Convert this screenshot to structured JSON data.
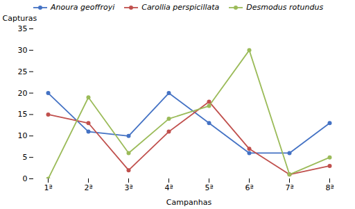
{
  "chart_data": {
    "type": "line",
    "categories": [
      "1ª",
      "2ª",
      "3ª",
      "4ª",
      "5ª",
      "6ª",
      "7ª",
      "8ª"
    ],
    "series": [
      {
        "name": "Anoura geoffroyi",
        "color": "#4472C4",
        "values": [
          20,
          11,
          10,
          20,
          13,
          6,
          6,
          13
        ]
      },
      {
        "name": "Carollia perspicillata",
        "color": "#C0504D",
        "values": [
          15,
          13,
          2,
          11,
          18,
          7,
          1,
          3
        ]
      },
      {
        "name": "Desmodus rotundus",
        "color": "#9BBB59",
        "values": [
          0,
          19,
          6,
          14,
          17,
          30,
          1,
          5
        ]
      }
    ],
    "xlabel": "Campanhas",
    "ylabel": "Capturas",
    "ylim": [
      0,
      35
    ],
    "yticks": [
      0,
      5,
      10,
      15,
      20,
      25,
      30,
      35
    ],
    "grid": false,
    "legend": "upper left",
    "marker": "circle"
  }
}
